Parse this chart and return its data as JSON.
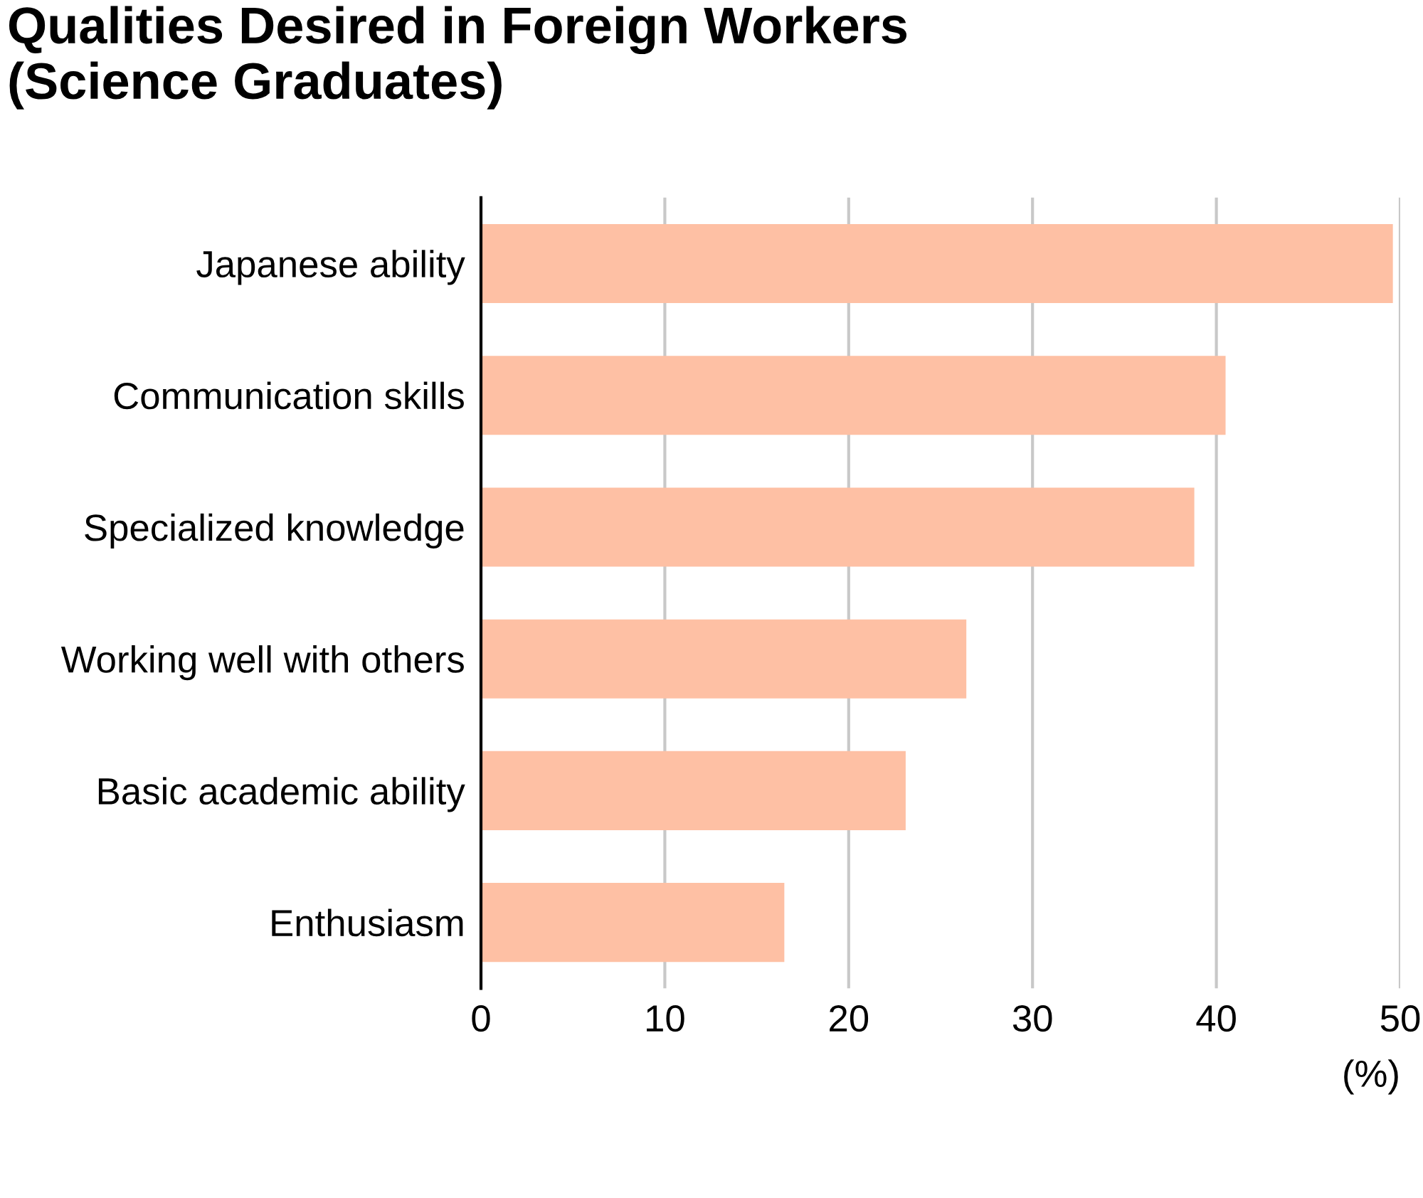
{
  "chart_data": {
    "type": "bar",
    "orientation": "horizontal",
    "title": "Qualities Desired in Foreign Workers\n(Science Graduates)",
    "xlabel": "(%)",
    "categories": [
      "Japanese ability",
      "Communication skills",
      "Specialized knowledge",
      "Working well with others",
      "Basic academic ability",
      "Enthusiasm"
    ],
    "values": [
      49.6,
      40.5,
      38.8,
      26.4,
      23.1,
      16.5
    ],
    "color": "#fec0a4",
    "xlim": [
      0,
      50
    ],
    "xticks": [
      0,
      10,
      20,
      30,
      40,
      50
    ],
    "grid": "x",
    "legend": false
  }
}
